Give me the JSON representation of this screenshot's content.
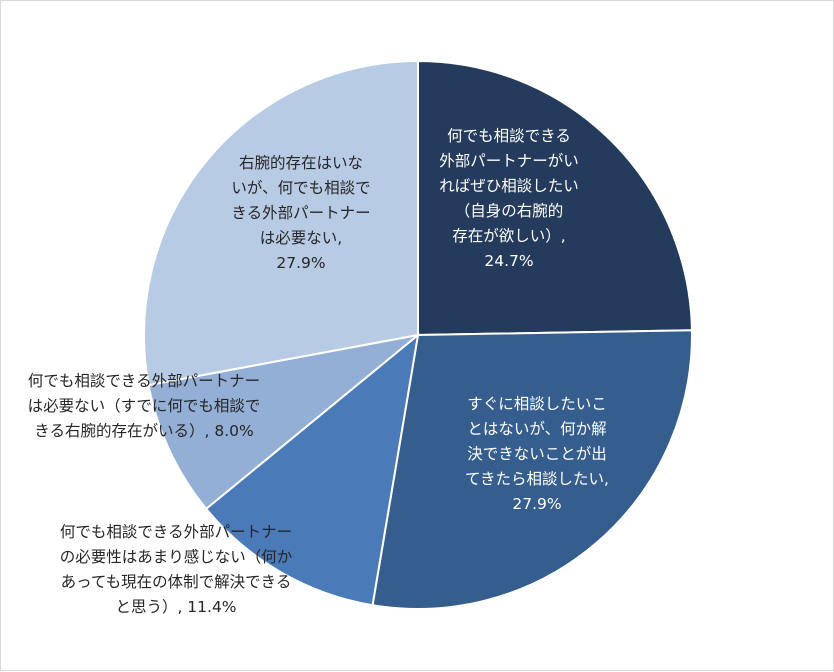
{
  "chart_data": {
    "type": "pie",
    "title": "",
    "start_angle_deg": 0,
    "direction": "clockwise",
    "slices": [
      {
        "value": 24.7,
        "color": "#243b5d",
        "label_color": "#ffffff",
        "label_lines": [
          "何でも相談できる",
          "外部パートナーがい",
          "ればぜひ相談したい",
          "（自身の右腕的",
          "存在が欲しい）,",
          "24.7%"
        ]
      },
      {
        "value": 27.9,
        "color": "#355e8f",
        "label_color": "#ffffff",
        "label_lines": [
          "すぐに相談したいこ",
          "とはないが、何か解",
          "決できないことが出",
          "てきたら相談したい,",
          "27.9%"
        ]
      },
      {
        "value": 11.4,
        "color": "#4a7ab8",
        "label_color": "#262626",
        "label_lines": [
          "何でも相談できる外部パートナー",
          "の必要性はあまり感じない（何か",
          "あっても現在の体制で解決できる",
          "と思う）, 11.4%"
        ]
      },
      {
        "value": 8.0,
        "color": "#94afd6",
        "label_color": "#262626",
        "label_lines": [
          "何でも相談できる外部パートナー",
          "は必要ない（すでに何でも相談で",
          "きる右腕的存在がいる）, 8.0%"
        ]
      },
      {
        "value": 27.9,
        "color": "#b8cbe4",
        "label_color": "#262626",
        "label_lines": [
          "右腕的存在はいな",
          "いが、何でも相談で",
          "きる外部パートナー",
          "は必要ない,",
          "27.9%"
        ]
      }
    ]
  }
}
